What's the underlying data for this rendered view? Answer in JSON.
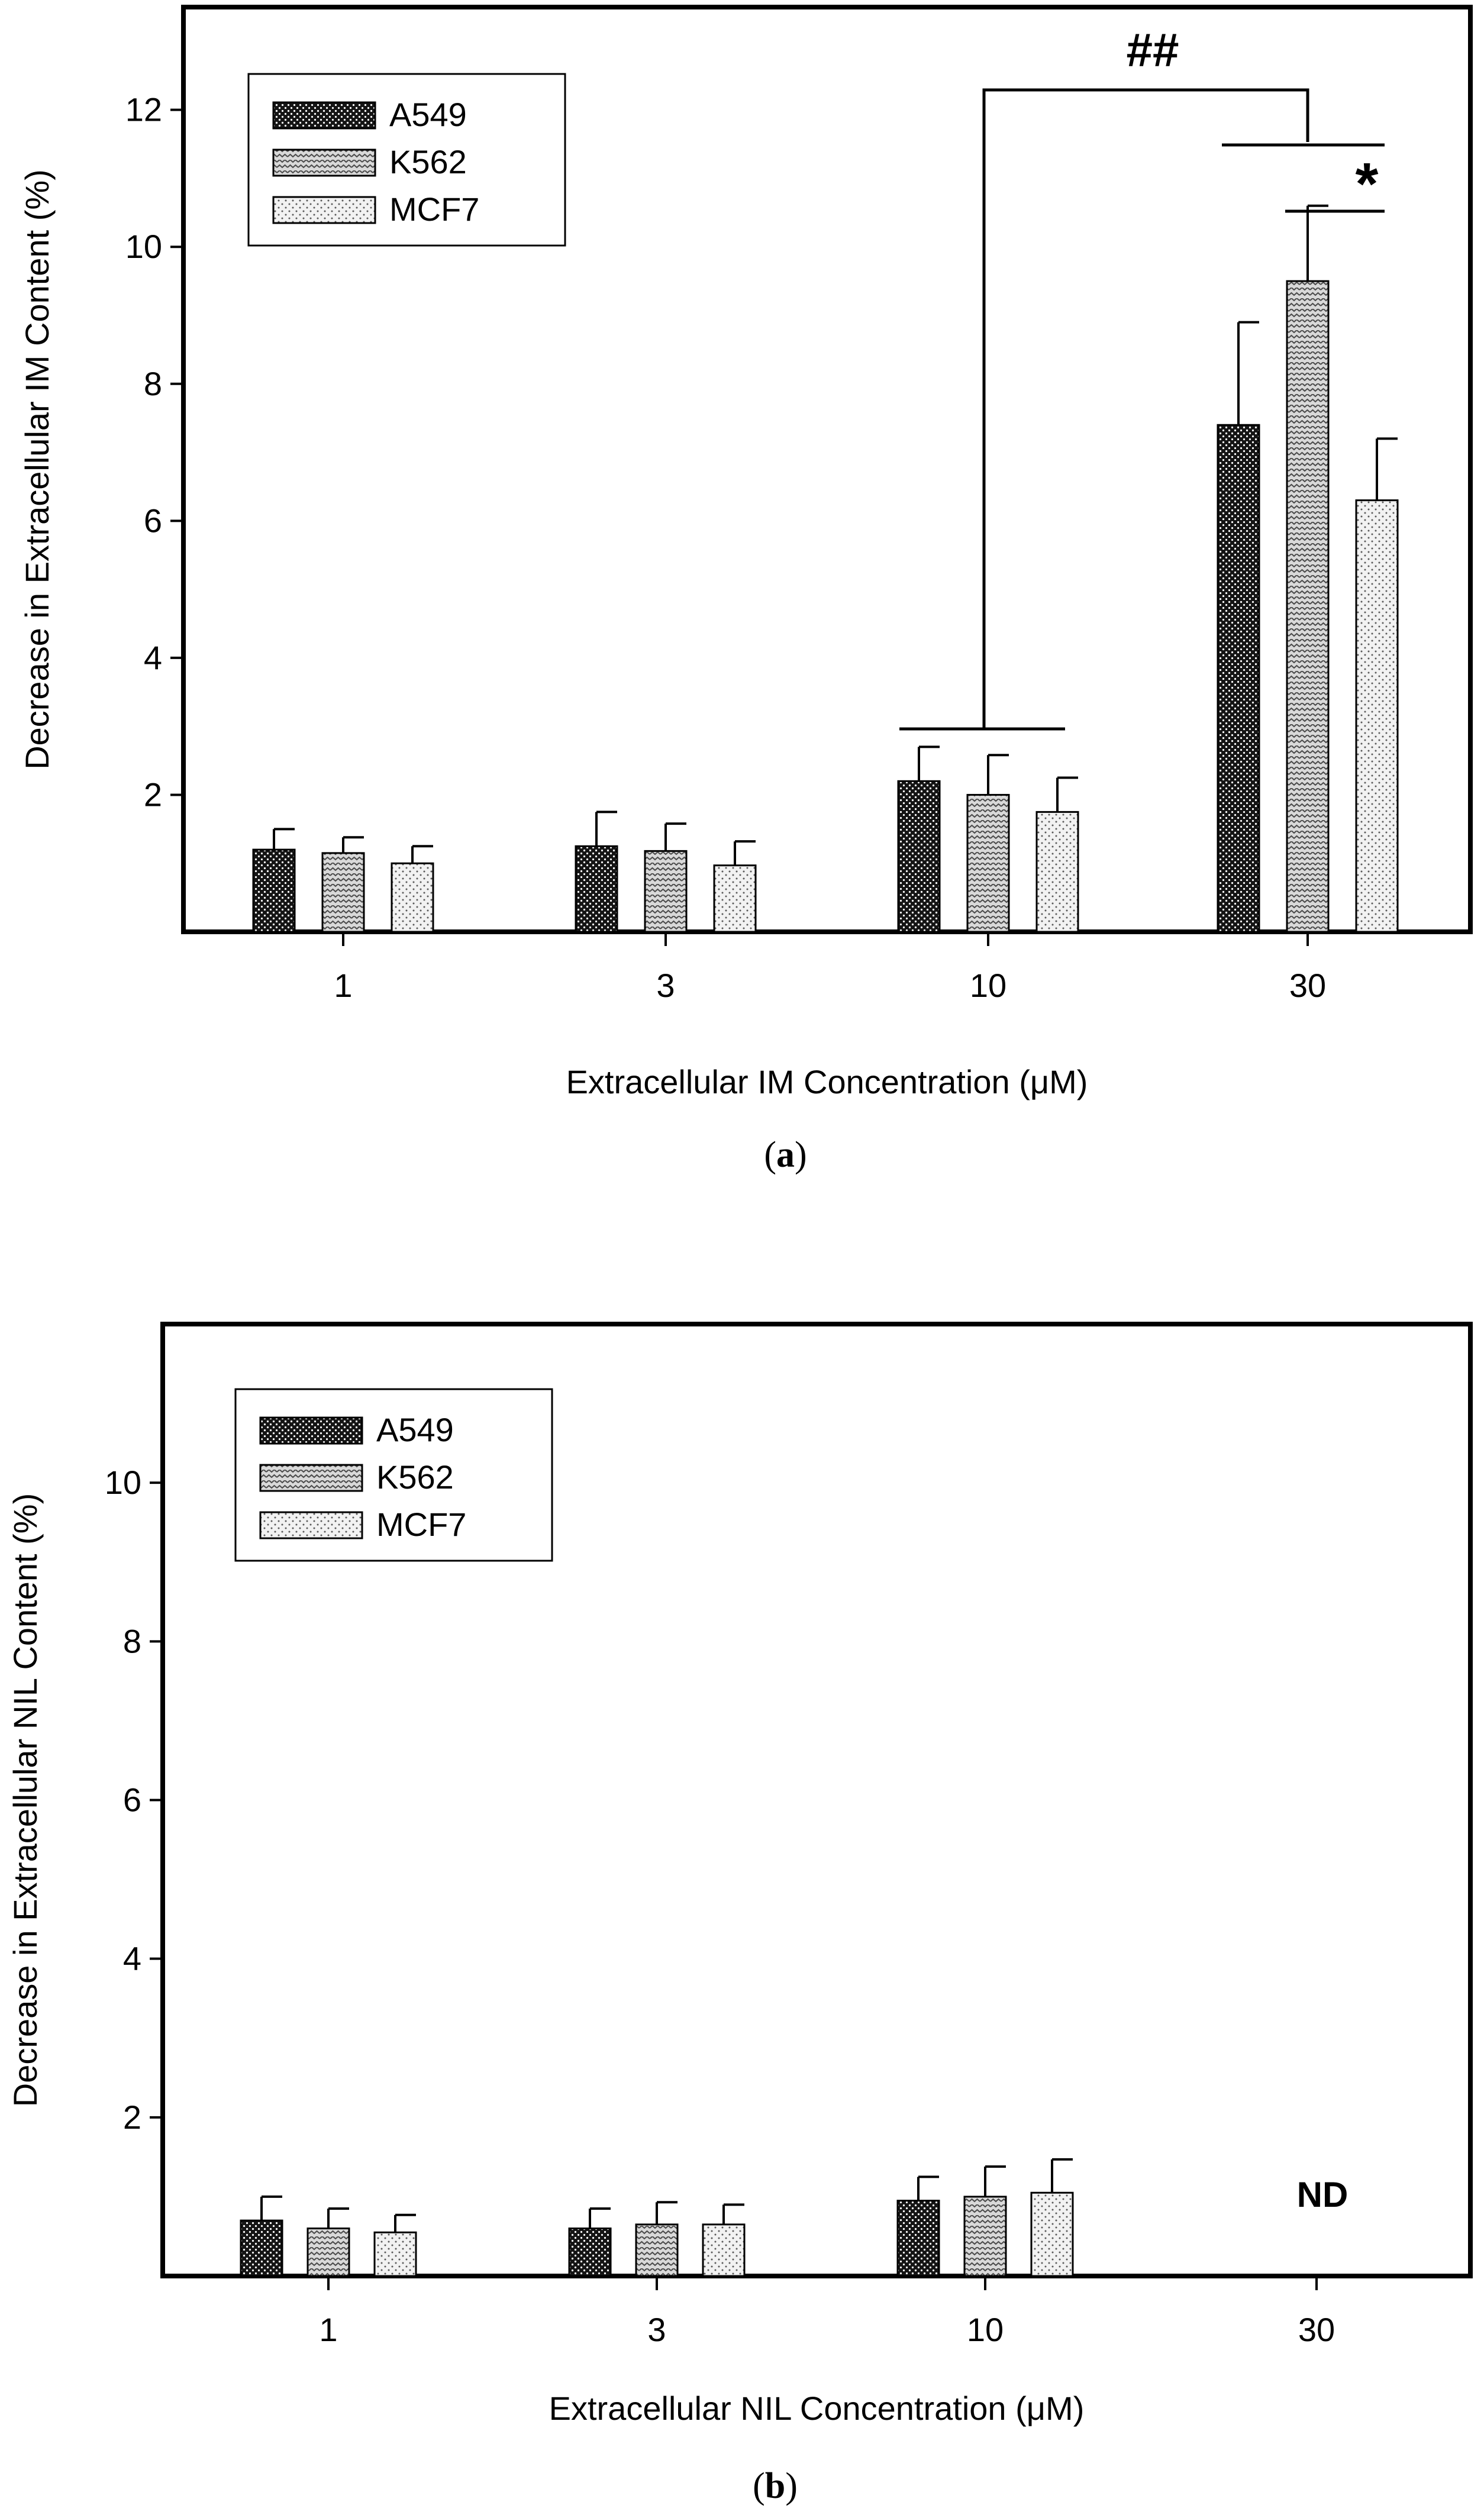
{
  "chart_data": [
    {
      "type": "bar",
      "panel_label": "(a)",
      "xlabel": "Extracellular IM Concentration (μM)",
      "ylabel": "Decrease in Extracellular IM Content (%)",
      "categories": [
        "1",
        "3",
        "10",
        "30"
      ],
      "ylim": [
        0,
        13.5
      ],
      "yticks": [
        2,
        4,
        6,
        8,
        10,
        12
      ],
      "legend_position": "top-left",
      "series": [
        {
          "name": "A549",
          "values": [
            1.2,
            1.25,
            2.2,
            7.4
          ],
          "errors": [
            0.3,
            0.5,
            0.5,
            1.5
          ]
        },
        {
          "name": "K562",
          "values": [
            1.15,
            1.18,
            2.0,
            9.5
          ],
          "errors": [
            0.23,
            0.4,
            0.58,
            1.1
          ]
        },
        {
          "name": "MCF7",
          "values": [
            1.0,
            0.97,
            1.75,
            6.3
          ],
          "errors": [
            0.25,
            0.35,
            0.5,
            0.9
          ]
        }
      ],
      "annotations": [
        {
          "text": "##",
          "type": "significance",
          "between": [
            "10",
            "30"
          ]
        },
        {
          "text": "*",
          "type": "significance",
          "between": [
            "K562",
            "MCF7"
          ],
          "category": "30"
        }
      ]
    },
    {
      "type": "bar",
      "panel_label": "(b)",
      "xlabel": "Extracellular NIL Concentration (μM)",
      "ylabel": "Decrease in Extracellular NIL Content (%)",
      "categories": [
        "1",
        "3",
        "10",
        "30"
      ],
      "ylim": [
        0,
        12
      ],
      "yticks": [
        2,
        4,
        6,
        8,
        10
      ],
      "legend_position": "top-left",
      "series": [
        {
          "name": "A549",
          "values": [
            0.7,
            0.6,
            0.95,
            null
          ],
          "errors": [
            0.3,
            0.25,
            0.3,
            null
          ]
        },
        {
          "name": "K562",
          "values": [
            0.6,
            0.65,
            1.0,
            null
          ],
          "errors": [
            0.25,
            0.28,
            0.38,
            null
          ]
        },
        {
          "name": "MCF7",
          "values": [
            0.55,
            0.65,
            1.05,
            null
          ],
          "errors": [
            0.22,
            0.25,
            0.42,
            null
          ]
        }
      ],
      "annotations": [
        {
          "text": "ND",
          "type": "not-detected",
          "category": "30"
        }
      ]
    }
  ]
}
